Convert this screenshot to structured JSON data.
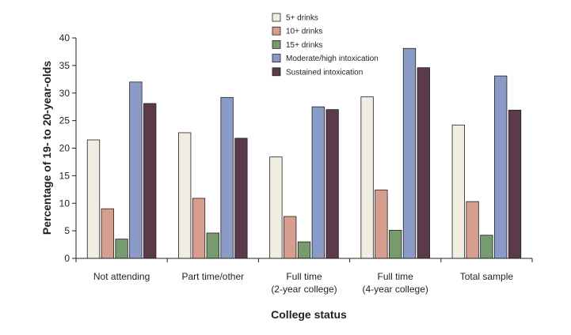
{
  "chart_data": {
    "type": "bar",
    "title": "",
    "xlabel": "College status",
    "ylabel": "Percentage of 19- to 20-year-olds",
    "ylim": [
      0,
      40
    ],
    "yticks": [
      "0",
      "5",
      "10",
      "15",
      "20",
      "25",
      "30",
      "35",
      "40"
    ],
    "grid": false,
    "legend_position": "top-center",
    "categories": [
      [
        "Not attending"
      ],
      [
        "Part time/other"
      ],
      [
        "Full time",
        "(2-year college)"
      ],
      [
        "Full time",
        "(4-year college)"
      ],
      [
        "Total sample"
      ]
    ],
    "series": [
      {
        "name": "5+ drinks",
        "color": "#f1ede1",
        "values": [
          21.5,
          22.8,
          18.4,
          29.3,
          24.2
        ]
      },
      {
        "name": "10+ drinks",
        "color": "#d59e8f",
        "values": [
          9.0,
          10.9,
          7.6,
          12.4,
          10.3
        ]
      },
      {
        "name": "15+ drinks",
        "color": "#789a6f",
        "values": [
          3.5,
          4.6,
          3.0,
          5.1,
          4.2
        ]
      },
      {
        "name": "Moderate/high intoxication",
        "color": "#8a9bc7",
        "values": [
          32.0,
          29.2,
          27.5,
          38.1,
          33.1
        ]
      },
      {
        "name": "Sustained intoxication",
        "color": "#5b3a4c",
        "values": [
          28.1,
          21.8,
          27.0,
          34.6,
          26.9
        ]
      }
    ]
  }
}
